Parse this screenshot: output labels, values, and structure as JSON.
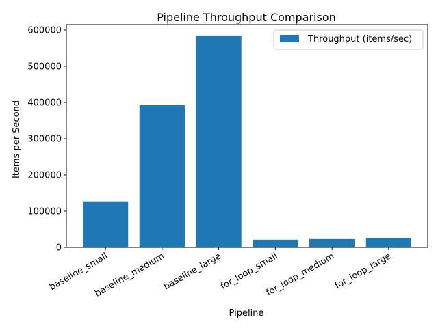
{
  "chart_data": {
    "type": "bar",
    "title": "Pipeline Throughput Comparison",
    "xlabel": "Pipeline",
    "ylabel": "Items per Second",
    "categories": [
      "baseline_small",
      "baseline_medium",
      "baseline_large",
      "for_loop_small",
      "for_loop_medium",
      "for_loop_large"
    ],
    "series": [
      {
        "name": "Throughput (items/sec)",
        "values": [
          127000,
          393000,
          585000,
          21000,
          23000,
          26000
        ],
        "color": "#1f77b4"
      }
    ],
    "ylim": [
      0,
      615000
    ],
    "yticks": [
      0,
      100000,
      200000,
      300000,
      400000,
      500000,
      600000
    ],
    "ytick_labels": [
      "0",
      "100000",
      "200000",
      "300000",
      "400000",
      "500000",
      "600000"
    ],
    "grid": false,
    "legend_position": "top-right"
  }
}
